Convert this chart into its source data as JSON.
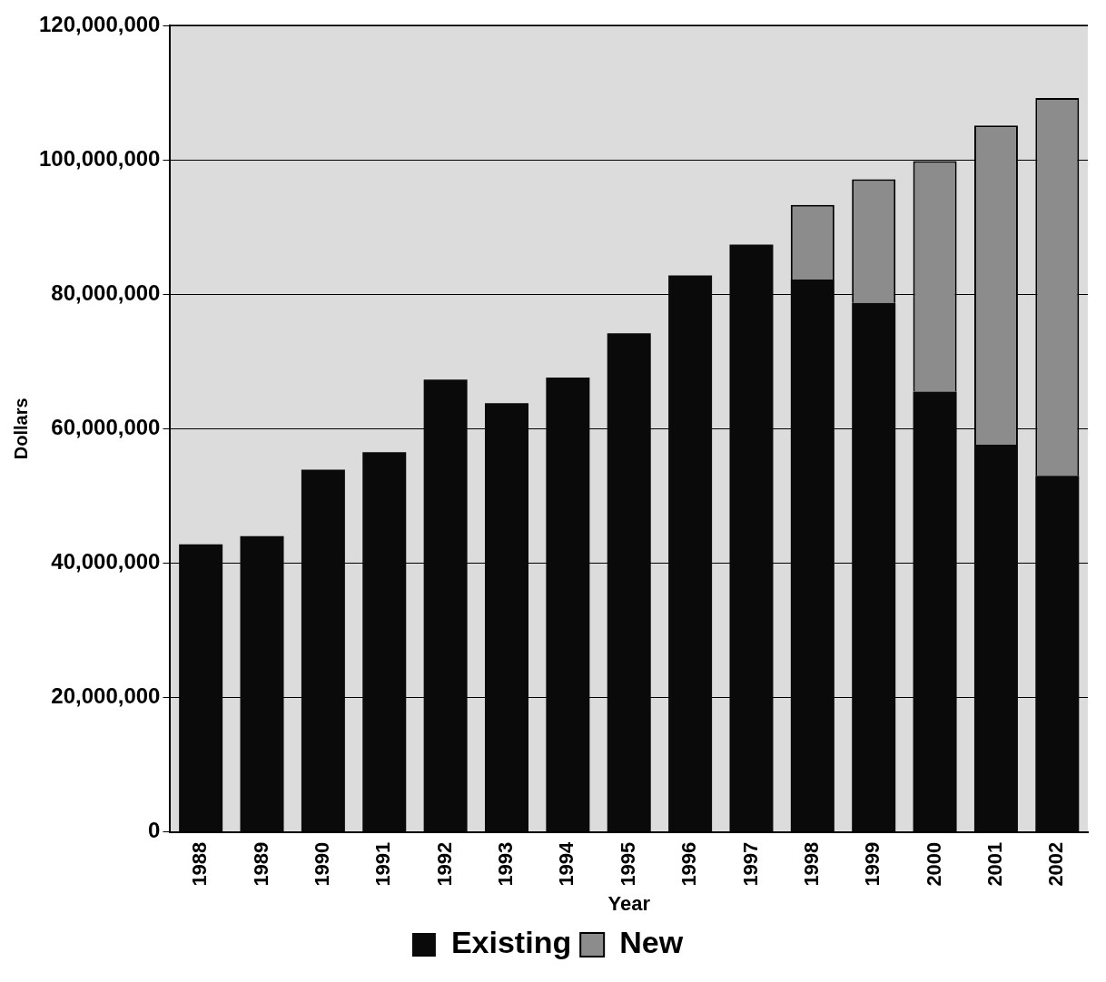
{
  "chart_data": {
    "type": "bar",
    "xlabel": "Year",
    "ylabel": "Dollars",
    "stacked": true,
    "grid": "y",
    "legend": "bottom",
    "categories": [
      "1988",
      "1989",
      "1990",
      "1991",
      "1992",
      "1993",
      "1994",
      "1995",
      "1996",
      "1997",
      "1998",
      "1999",
      "2000",
      "2001",
      "2002"
    ],
    "series": [
      {
        "name": "Existing",
        "color": "#0a0a0a",
        "values": [
          42800000,
          44000000,
          53900000,
          56500000,
          67300000,
          63800000,
          67600000,
          74200000,
          82800000,
          87400000,
          82200000,
          78700000,
          65500000,
          57600000,
          53000000
        ]
      },
      {
        "name": "New",
        "color": "#8c8c8c",
        "values": [
          null,
          null,
          null,
          null,
          null,
          null,
          null,
          null,
          null,
          null,
          11100000,
          18400000,
          34300000,
          47500000,
          56200000
        ]
      }
    ],
    "ylim": [
      0,
      120000000
    ],
    "yticks": [
      {
        "value": 0,
        "label": "0"
      },
      {
        "value": 20000000,
        "label": "20,000,000"
      },
      {
        "value": 40000000,
        "label": "40,000,000"
      },
      {
        "value": 60000000,
        "label": "60,000,000"
      },
      {
        "value": 80000000,
        "label": "80,000,000"
      },
      {
        "value": 100000000,
        "label": "100,000,000"
      },
      {
        "value": 120000000,
        "label": "120,000,000"
      }
    ]
  }
}
